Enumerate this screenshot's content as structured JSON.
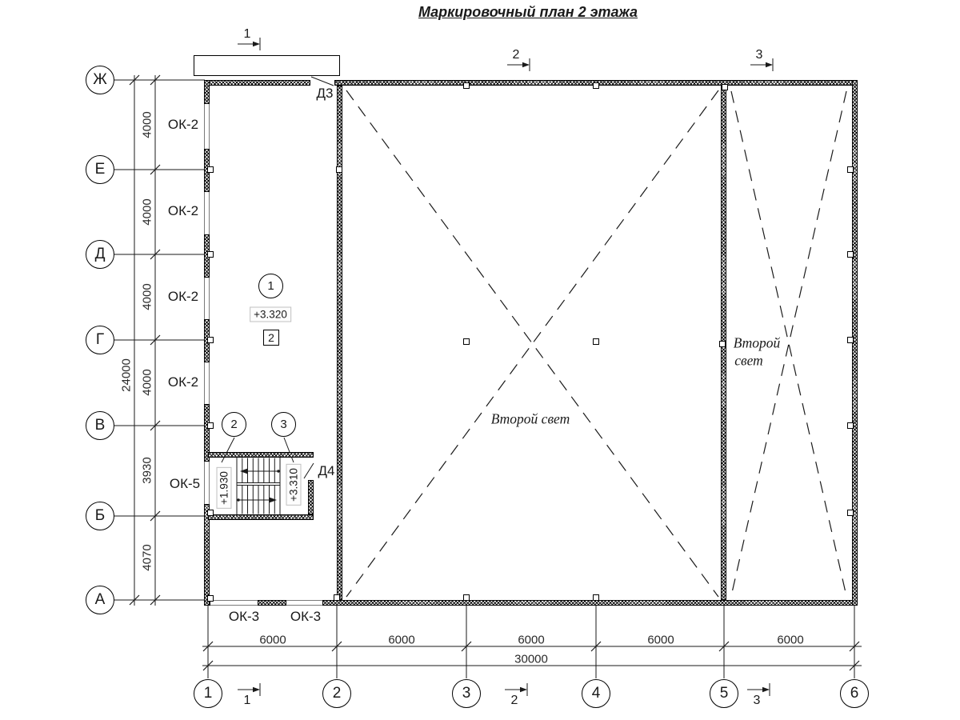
{
  "title": "Маркировочный план 2 этажа",
  "colors": {
    "ink": "#1a1a1a",
    "paper": "#ffffff",
    "window_line": "#7a7a7a"
  },
  "axes": {
    "rows": [
      "Ж",
      "Е",
      "Д",
      "Г",
      "В",
      "Б",
      "А"
    ],
    "cols": [
      "1",
      "2",
      "3",
      "4",
      "5",
      "6"
    ]
  },
  "dims": {
    "left": [
      "4000",
      "4000",
      "4000",
      "4000",
      "3930",
      "4070"
    ],
    "left_total": "24000",
    "bottom": [
      "6000",
      "6000",
      "6000",
      "6000",
      "6000"
    ],
    "bottom_total": "30000"
  },
  "labels": {
    "windows_left": [
      "ОК-2",
      "ОК-2",
      "ОК-2",
      "ОК-2"
    ],
    "window_ok5": "ОК-5",
    "windows_bottom": [
      "ОК-3",
      "ОК-3"
    ],
    "door_d3": "Д3",
    "door_d4": "Д4"
  },
  "marks": {
    "room_number": "1",
    "room_elevation": "+3.320",
    "room_type": "2",
    "stair_mark_2": "2",
    "stair_mark_3": "3",
    "stair_elev_left": "+1.930",
    "stair_elev_right": "+3.310"
  },
  "sections": {
    "top": [
      "1",
      "2",
      "3"
    ],
    "bottom": [
      "1",
      "2",
      "3"
    ]
  },
  "annotations": {
    "second_light_main": "Второй свет",
    "second_light_right_line1": "Второй",
    "second_light_right_line2": "свет"
  }
}
